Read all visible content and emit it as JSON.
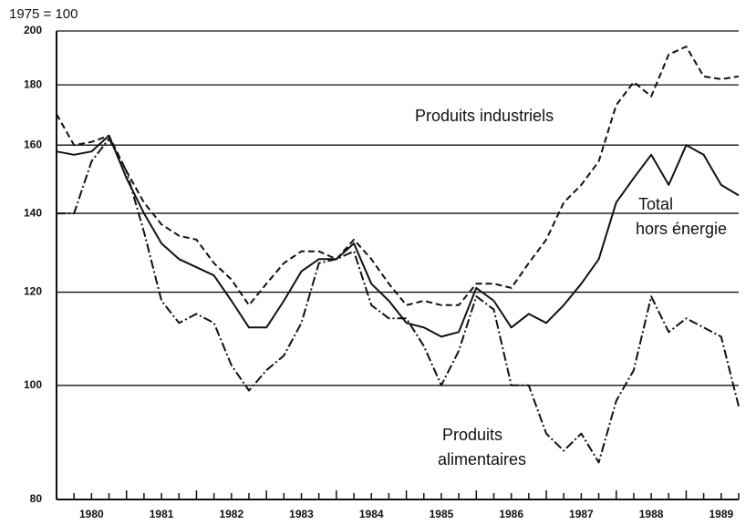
{
  "chart_data": {
    "type": "line",
    "unit_note": "1975 = 100",
    "log_y": true,
    "grid": true,
    "xlim": [
      1980,
      1989.75
    ],
    "ylim": [
      80,
      200
    ],
    "yticks": [
      80,
      100,
      120,
      140,
      160,
      180,
      200
    ],
    "xticks": [
      {
        "value": 1980.5,
        "label": "1980"
      },
      {
        "value": 1981.5,
        "label": "1981"
      },
      {
        "value": 1982.5,
        "label": "1982"
      },
      {
        "value": 1983.5,
        "label": "1983"
      },
      {
        "value": 1984.5,
        "label": "1984"
      },
      {
        "value": 1985.5,
        "label": "1985"
      },
      {
        "value": 1986.5,
        "label": "1986"
      },
      {
        "value": 1987.5,
        "label": "1987"
      },
      {
        "value": 1988.5,
        "label": "1988"
      },
      {
        "value": 1989.5,
        "label": "1989"
      }
    ],
    "x": [
      1980,
      1980.25,
      1980.5,
      1980.75,
      1981,
      1981.25,
      1981.5,
      1981.75,
      1982,
      1982.25,
      1982.5,
      1982.75,
      1983,
      1983.25,
      1983.5,
      1983.75,
      1984,
      1984.25,
      1984.5,
      1984.75,
      1985,
      1985.25,
      1985.5,
      1985.75,
      1986,
      1986.25,
      1986.5,
      1986.75,
      1987,
      1987.25,
      1987.5,
      1987.75,
      1988,
      1988.25,
      1988.5,
      1988.75,
      1989,
      1989.25,
      1989.5,
      1989.75
    ],
    "series": [
      {
        "label_lines": [
          "Produits industriels"
        ],
        "color": "#111111",
        "linestyle": "dashed",
        "values": [
          170,
          160,
          161,
          163,
          152,
          143,
          137,
          134,
          133,
          127,
          123,
          117,
          122,
          127,
          130,
          130,
          128,
          133,
          128,
          122,
          117,
          118,
          117,
          117,
          122,
          122,
          121,
          127,
          133,
          143,
          148,
          155,
          173,
          181,
          176,
          191,
          194,
          183,
          182,
          183
        ]
      },
      {
        "label_lines": [
          "Total",
          "hors énergie"
        ],
        "color": "#111111",
        "linestyle": "solid",
        "values": [
          158,
          157,
          158,
          163,
          150,
          140,
          132,
          128,
          126,
          124,
          118,
          112,
          112,
          118,
          125,
          128,
          128,
          132,
          122,
          118,
          113,
          112,
          110,
          111,
          121,
          118,
          112,
          115,
          113,
          117,
          122,
          128,
          143,
          150,
          157,
          148,
          160,
          157,
          148,
          145
        ]
      },
      {
        "label_lines": [
          "Produits",
          "alimentaires"
        ],
        "color": "#111111",
        "linestyle": "dashdot",
        "values": [
          140,
          140,
          155,
          162,
          152,
          135,
          118,
          113,
          115,
          113,
          104,
          99,
          103,
          106,
          113,
          127,
          128,
          130,
          117,
          114,
          114,
          108,
          100,
          107,
          119,
          116,
          100,
          100,
          91,
          88,
          91,
          86,
          97,
          103,
          119,
          111,
          114,
          112,
          110,
          96
        ]
      }
    ]
  }
}
